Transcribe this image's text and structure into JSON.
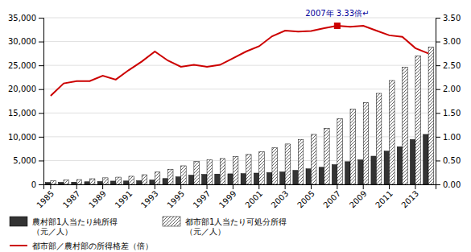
{
  "chart_data": {
    "type": "bar",
    "categories": [
      "1985",
      null,
      "1987",
      null,
      "1989",
      null,
      "1991",
      null,
      "1993",
      null,
      "1995",
      null,
      "1997",
      null,
      "1999",
      null,
      "2001",
      null,
      "2003",
      null,
      "2005",
      null,
      "2007",
      null,
      "2009",
      null,
      "2011",
      null,
      "2013",
      null
    ],
    "series": [
      {
        "name": "農村部1人当たり純所得\n（元／人）",
        "color": "#333333",
        "values": [
          398,
          424,
          463,
          545,
          602,
          686,
          709,
          784,
          922,
          1221,
          1578,
          1926,
          2090,
          2162,
          2210,
          2253,
          2366,
          2476,
          2622,
          2936,
          3255,
          3587,
          4140,
          4761,
          5153,
          5919,
          6977,
          7917,
          9430,
          10489
        ]
      },
      {
        "name": "都市部1人当たり可処分所得\n（元／人）",
        "color": "#ffffff",
        "values": [
          739,
          900,
          1002,
          1181,
          1374,
          1510,
          1701,
          2027,
          2577,
          3179,
          3893,
          4839,
          5160,
          5425,
          5854,
          6280,
          6860,
          7703,
          8472,
          9422,
          10493,
          11759,
          13786,
          15781,
          17175,
          19109,
          21810,
          24565,
          26955,
          28844
        ]
      },
      {
        "name": "都市部／農村部の所得格差（倍）",
        "type": "line",
        "axis": "y2",
        "color": "#cc0000",
        "values": [
          1.86,
          2.12,
          2.17,
          2.17,
          2.28,
          2.2,
          2.4,
          2.58,
          2.79,
          2.6,
          2.47,
          2.51,
          2.47,
          2.51,
          2.65,
          2.79,
          2.9,
          3.11,
          3.23,
          3.21,
          3.22,
          3.28,
          3.33,
          3.31,
          3.33,
          3.23,
          3.13,
          3.1,
          2.86,
          2.75
        ]
      }
    ],
    "ylim": [
      0,
      35000
    ],
    "yticks": [
      0,
      {
        "value": 5000,
        "label": "5,000"
      },
      {
        "value": 10000,
        "label": "10,000"
      },
      {
        "value": 15000,
        "label": "15,000"
      },
      {
        "value": 20000,
        "label": "20,000"
      },
      {
        "value": 25000,
        "label": "25,000"
      },
      {
        "value": 30000,
        "label": "30,000"
      },
      {
        "value": 35000,
        "label": "35,000"
      }
    ],
    "y2lim": [
      0.0,
      3.5
    ],
    "y2ticks": [
      {
        "value": 0,
        "label": "0.00"
      },
      {
        "value": 0.5,
        "label": "0.50"
      },
      {
        "value": 1,
        "label": "1.00"
      },
      {
        "value": 1.5,
        "label": "1.50"
      },
      {
        "value": 2,
        "label": "2.00"
      },
      {
        "value": 2.5,
        "label": "2.50"
      },
      {
        "value": 3,
        "label": "3.00"
      },
      {
        "value": 3.5,
        "label": "3.50"
      }
    ],
    "annotations": [
      {
        "text": "2007年 3.33倍↵",
        "x": "2007",
        "y": 3.33,
        "axis": "y2",
        "color": "#000099",
        "marker": "square"
      }
    ],
    "grid": true,
    "legend": "bottom"
  }
}
